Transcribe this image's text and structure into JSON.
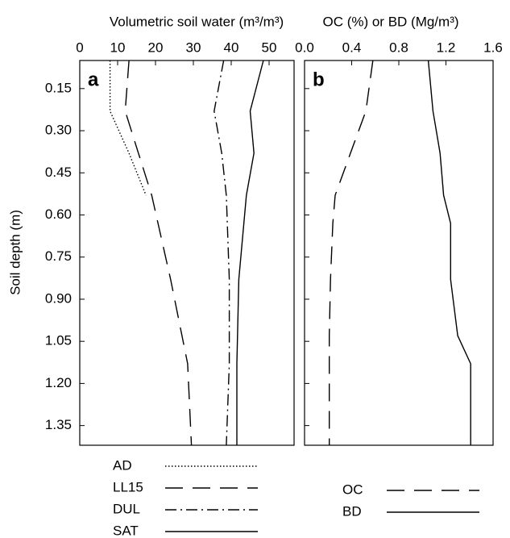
{
  "chart_data": [
    {
      "type": "line",
      "panel_label": "a",
      "x_label": "Volumetric soil water (m³/m³)",
      "y_label": "Soil depth (m)",
      "y": [
        0.05,
        0.23,
        0.38,
        0.53,
        0.83,
        1.13,
        1.42
      ],
      "series": [
        {
          "name": "AD",
          "color": "#000000",
          "dash": "dotted",
          "values": [
            8,
            8,
            13,
            17.5,
            null,
            null,
            null
          ]
        },
        {
          "name": "LL15",
          "color": "#000000",
          "dash": "dashed",
          "values": [
            13,
            12,
            15.5,
            19,
            24,
            28.5,
            29.5
          ]
        },
        {
          "name": "DUL",
          "color": "#000000",
          "dash": "dashdot",
          "values": [
            38,
            35.5,
            37.5,
            38.7,
            39.5,
            39.5,
            38.7
          ]
        },
        {
          "name": "SAT",
          "color": "#000000",
          "dash": "solid",
          "values": [
            48.5,
            45,
            46,
            44,
            42,
            41.5,
            41.5
          ]
        }
      ],
      "xlim": [
        0,
        56.6
      ],
      "xticks": [
        0,
        10,
        20,
        30,
        40,
        50
      ],
      "ylim": [
        0.05,
        1.42
      ],
      "yticks": [
        0.15,
        {
          "value": 0.3,
          "label": "0.30"
        },
        0.45,
        {
          "value": 0.6,
          "label": "0.60"
        },
        0.75,
        {
          "value": 0.9,
          "label": "0.90"
        },
        1.05,
        {
          "value": 1.2,
          "label": "1.20"
        },
        1.35
      ]
    },
    {
      "type": "line",
      "panel_label": "b",
      "x_label": "OC (%) or BD (Mg/m³)",
      "y": [
        0.05,
        0.23,
        0.38,
        0.53,
        0.63,
        0.83,
        1.03,
        1.13,
        1.42
      ],
      "series": [
        {
          "name": "OC",
          "color": "#000000",
          "dash": "dashed",
          "values": [
            0.58,
            0.52,
            0.39,
            0.26,
            0.24,
            0.22,
            0.21,
            0.21,
            0.21
          ]
        },
        {
          "name": "BD",
          "color": "#000000",
          "dash": "solid",
          "values": [
            1.05,
            1.09,
            1.15,
            1.18,
            1.24,
            1.24,
            1.3,
            1.41,
            1.41
          ]
        }
      ],
      "xlim": [
        0,
        1.6
      ],
      "xticks": [
        {
          "value": 0,
          "label": "0.0"
        },
        0.4,
        0.8,
        1.2,
        1.6
      ],
      "ylim": [
        0.05,
        1.42
      ],
      "yticks": [
        0.15,
        0.3,
        0.45,
        0.6,
        0.75,
        0.9,
        1.05,
        1.2,
        1.35
      ]
    }
  ]
}
